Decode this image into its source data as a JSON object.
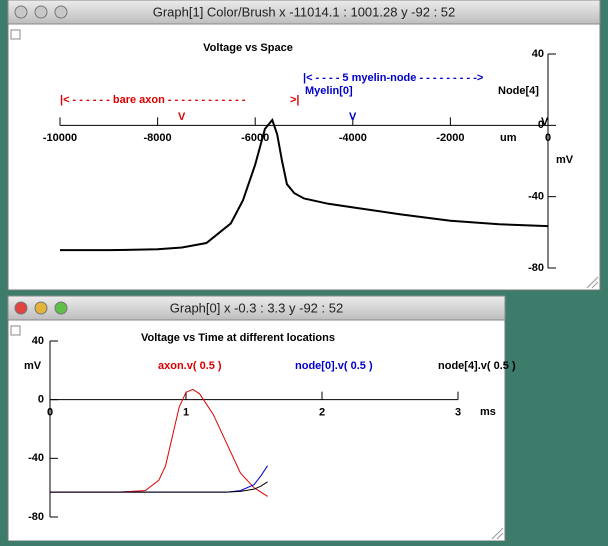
{
  "windows": [
    {
      "title": "Graph[1] Color/Brush x -11014.1 : 1001.28  y -92 : 52",
      "chart": {
        "type": "line",
        "title": "Voltage  vs Space",
        "x_label": "um",
        "y_label": "mV",
        "xlim": [
          -10000,
          0
        ],
        "ylim": [
          -80,
          40
        ],
        "xticks": [
          -10000,
          -8000,
          -6000,
          -4000,
          -2000,
          0
        ],
        "yticks": [
          40,
          0,
          -40,
          -80
        ],
        "x": [
          -10000,
          -9000,
          -8000,
          -7500,
          -7000,
          -6500,
          -6250,
          -6000,
          -5900,
          -5800,
          -5650,
          -5550,
          -5450,
          -5350,
          -5200,
          -5000,
          -4500,
          -4000,
          -3000,
          -2000,
          -1000,
          0
        ],
        "series": [
          {
            "name": null,
            "color": "#000000",
            "values": [
              -70,
              -70,
              -69.5,
              -68.5,
              -66,
              -55,
              -42,
              -22,
              -12,
              -2,
              3,
              -5,
              -20,
              -33,
              -38,
              -41,
              -44,
              -46,
              -50,
              -53.5,
              -55.5,
              -56.5
            ]
          }
        ],
        "annotations": [
          {
            "text": "|<  - - - - - - bare axon - - - - - - - - - - - -",
            "color": "#dd0000"
          },
          {
            "text": ">|",
            "color": "#dd0000"
          },
          {
            "text": "V",
            "color": "#dd0000"
          },
          {
            "text": "|<   - - - -   5 myelin-node   - - - - - - - - ->",
            "color": "#0000cc"
          },
          {
            "text": "Myelin[0]",
            "color": "#0000cc"
          },
          {
            "text": "V",
            "color": "#0000cc"
          },
          {
            "text": "Node[4]",
            "color": "#000000"
          },
          {
            "text": "V",
            "color": "#000000"
          }
        ]
      }
    },
    {
      "title": "Graph[0]  x -0.3 : 3.3  y -92 : 52",
      "chart": {
        "type": "line",
        "title": "Voltage  vs Time at different locations",
        "x_label": "ms",
        "y_label": "mV",
        "xlim": [
          0,
          3
        ],
        "ylim": [
          -80,
          40
        ],
        "xticks": [
          0,
          1,
          2,
          3
        ],
        "yticks": [
          40,
          0,
          -40,
          -80
        ],
        "x": [
          0,
          0.5,
          0.7,
          0.8,
          0.85,
          0.9,
          0.95,
          1.0,
          1.05,
          1.1,
          1.2,
          1.3,
          1.4,
          1.5,
          1.55,
          1.6
        ],
        "series": [
          {
            "name": "axon.v( 0.5 )",
            "color": "#dd0000",
            "values": [
              -63,
              -63,
              -62,
              -55,
              -45,
              -25,
              -5,
              5,
              7,
              4,
              -10,
              -30,
              -50,
              -60,
              -63,
              -66
            ]
          },
          {
            "name": "node[0].v( 0.5 )",
            "color": "#0000cc",
            "values": [
              -63,
              -63,
              -63,
              -63,
              -63,
              -63,
              -63,
              -63,
              -63,
              -63,
              -63,
              -63,
              -62,
              -58,
              -52,
              -45
            ]
          },
          {
            "name": "node[4].v( 0.5 )",
            "color": "#000000",
            "values": [
              -63,
              -63,
              -63,
              -63,
              -63,
              -63,
              -63,
              -63,
              -63,
              -63,
              -63,
              -63,
              -62.5,
              -61,
              -59,
              -56
            ]
          }
        ],
        "annotations": []
      }
    }
  ]
}
